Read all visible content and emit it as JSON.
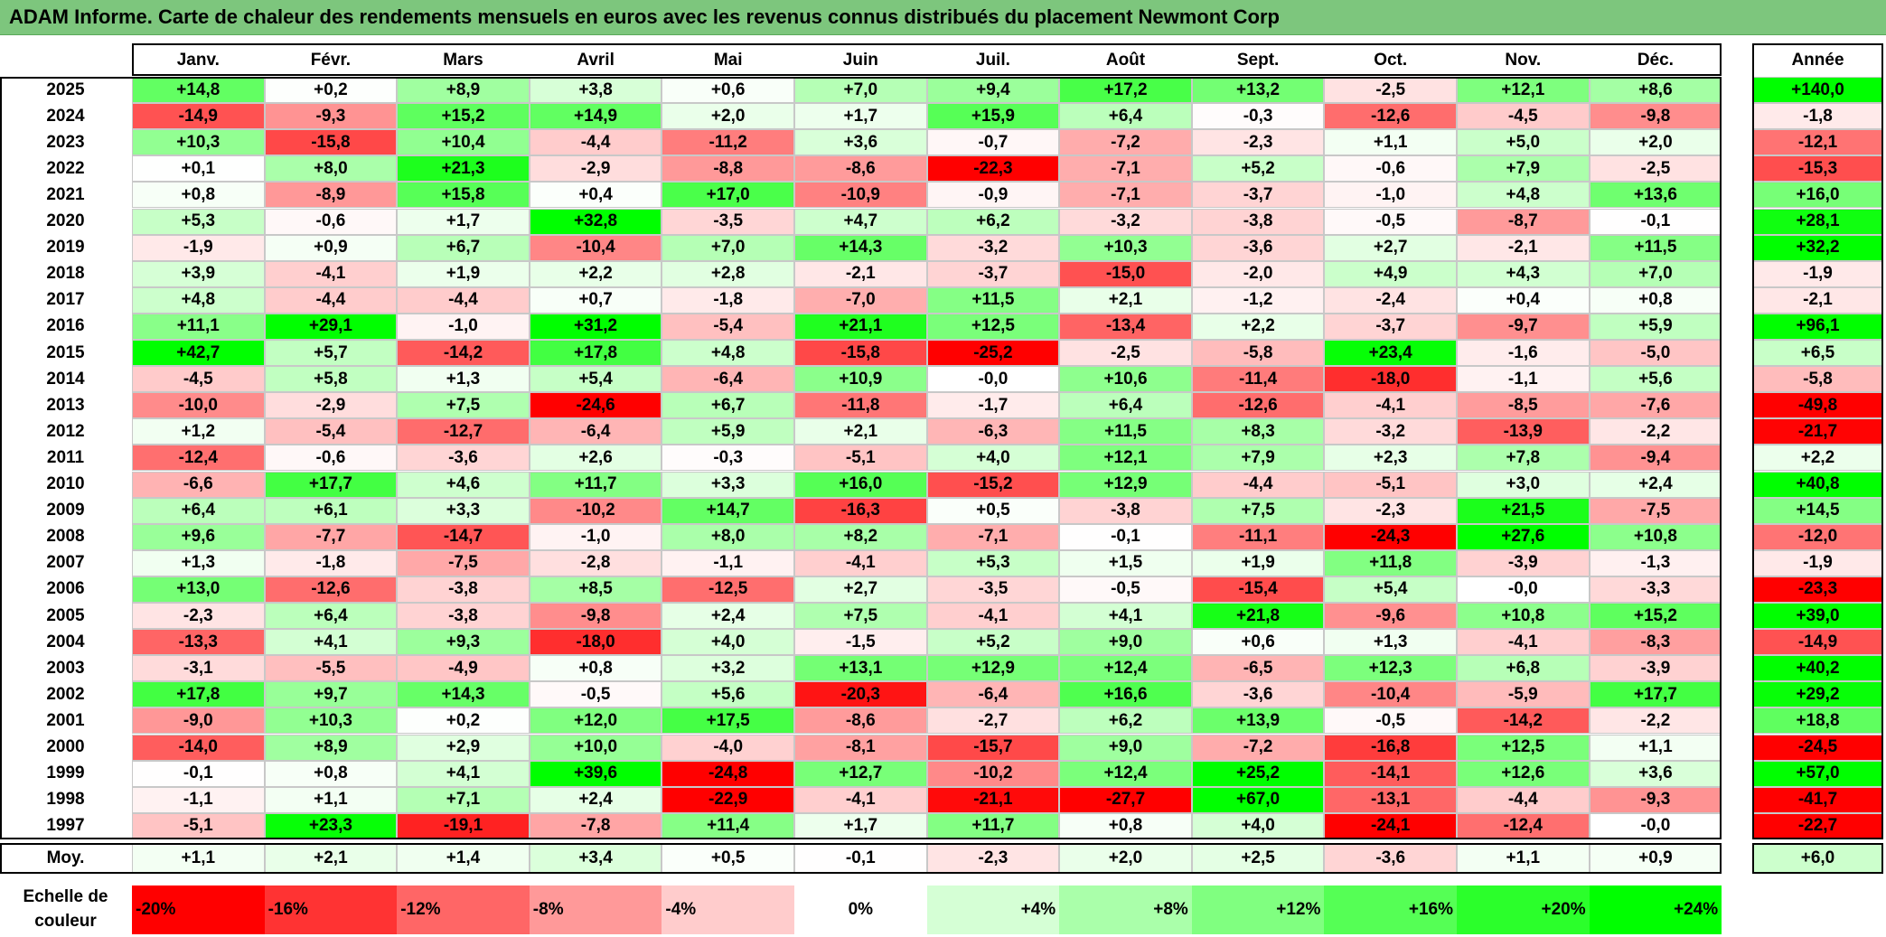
{
  "header": {
    "title": "ADAM Informe. Carte de chaleur des rendements mensuels en euros avec les revenus connus distribués du placement Newmont Corp"
  },
  "chart_data": {
    "type": "heatmap",
    "title": "ADAM Informe. Carte de chaleur des rendements mensuels en euros avec les revenus connus distribués du placement Newmont Corp",
    "columns": [
      "Janv.",
      "Févr.",
      "Mars",
      "Avril",
      "Mai",
      "Juin",
      "Juil.",
      "Août",
      "Sept.",
      "Oct.",
      "Nov.",
      "Déc."
    ],
    "annual_header": "Année",
    "years": [
      "2025",
      "2024",
      "2023",
      "2022",
      "2021",
      "2020",
      "2019",
      "2018",
      "2017",
      "2016",
      "2015",
      "2014",
      "2013",
      "2012",
      "2011",
      "2010",
      "2009",
      "2008",
      "2007",
      "2006",
      "2005",
      "2004",
      "2003",
      "2002",
      "2001",
      "2000",
      "1999",
      "1998",
      "1997"
    ],
    "values": [
      [
        "+14,8",
        "+0,2",
        "+8,9",
        "+3,8",
        "+0,6",
        "+7,0",
        "+9,4",
        "+17,2",
        "+13,2",
        "-2,5",
        "+12,1",
        "+8,6"
      ],
      [
        "-14,9",
        "-9,3",
        "+15,2",
        "+14,9",
        "+2,0",
        "+1,7",
        "+15,9",
        "+6,4",
        "-0,3",
        "-12,6",
        "-4,5",
        "-9,8"
      ],
      [
        "+10,3",
        "-15,8",
        "+10,4",
        "-4,4",
        "-11,2",
        "+3,6",
        "-0,7",
        "-7,2",
        "-2,3",
        "+1,1",
        "+5,0",
        "+2,0"
      ],
      [
        "+0,1",
        "+8,0",
        "+21,3",
        "-2,9",
        "-8,8",
        "-8,6",
        "-22,3",
        "-7,1",
        "+5,2",
        "-0,6",
        "+7,9",
        "-2,5"
      ],
      [
        "+0,8",
        "-8,9",
        "+15,8",
        "+0,4",
        "+17,0",
        "-10,9",
        "-0,9",
        "-7,1",
        "-3,7",
        "-1,0",
        "+4,8",
        "+13,6"
      ],
      [
        "+5,3",
        "-0,6",
        "+1,7",
        "+32,8",
        "-3,5",
        "+4,7",
        "+6,2",
        "-3,2",
        "-3,8",
        "-0,5",
        "-8,7",
        "-0,1"
      ],
      [
        "-1,9",
        "+0,9",
        "+6,7",
        "-10,4",
        "+7,0",
        "+14,3",
        "-3,2",
        "+10,3",
        "-3,6",
        "+2,7",
        "-2,1",
        "+11,5"
      ],
      [
        "+3,9",
        "-4,1",
        "+1,9",
        "+2,2",
        "+2,8",
        "-2,1",
        "-3,7",
        "-15,0",
        "-2,0",
        "+4,9",
        "+4,3",
        "+7,0"
      ],
      [
        "+4,8",
        "-4,4",
        "-4,4",
        "+0,7",
        "-1,8",
        "-7,0",
        "+11,5",
        "+2,1",
        "-1,2",
        "-2,4",
        "+0,4",
        "+0,8"
      ],
      [
        "+11,1",
        "+29,1",
        "-1,0",
        "+31,2",
        "-5,4",
        "+21,1",
        "+12,5",
        "-13,4",
        "+2,2",
        "-3,7",
        "-9,7",
        "+5,9"
      ],
      [
        "+42,7",
        "+5,7",
        "-14,2",
        "+17,8",
        "+4,8",
        "-15,8",
        "-25,2",
        "-2,5",
        "-5,8",
        "+23,4",
        "-1,6",
        "-5,0"
      ],
      [
        "-4,5",
        "+5,8",
        "+1,3",
        "+5,4",
        "-6,4",
        "+10,9",
        "-0,0",
        "+10,6",
        "-11,4",
        "-18,0",
        "-1,1",
        "+5,6"
      ],
      [
        "-10,0",
        "-2,9",
        "+7,5",
        "-24,6",
        "+6,7",
        "-11,8",
        "-1,7",
        "+6,4",
        "-12,6",
        "-4,1",
        "-8,5",
        "-7,6"
      ],
      [
        "+1,2",
        "-5,4",
        "-12,7",
        "-6,4",
        "+5,9",
        "+2,1",
        "-6,3",
        "+11,5",
        "+8,3",
        "-3,2",
        "-13,9",
        "-2,2"
      ],
      [
        "-12,4",
        "-0,6",
        "-3,6",
        "+2,6",
        "-0,3",
        "-5,1",
        "+4,0",
        "+12,1",
        "+7,9",
        "+2,3",
        "+7,8",
        "-9,4"
      ],
      [
        "-6,6",
        "+17,7",
        "+4,6",
        "+11,7",
        "+3,3",
        "+16,0",
        "-15,2",
        "+12,9",
        "-4,4",
        "-5,1",
        "+3,0",
        "+2,4"
      ],
      [
        "+6,4",
        "+6,1",
        "+3,3",
        "-10,2",
        "+14,7",
        "-16,3",
        "+0,5",
        "-3,8",
        "+7,5",
        "-2,3",
        "+21,5",
        "-7,5"
      ],
      [
        "+9,6",
        "-7,7",
        "-14,7",
        "-1,0",
        "+8,0",
        "+8,2",
        "-7,1",
        "-0,1",
        "-11,1",
        "-24,3",
        "+27,6",
        "+10,8"
      ],
      [
        "+1,3",
        "-1,8",
        "-7,5",
        "-2,8",
        "-1,1",
        "-4,1",
        "+5,3",
        "+1,5",
        "+1,9",
        "+11,8",
        "-3,9",
        "-1,3"
      ],
      [
        "+13,0",
        "-12,6",
        "-3,8",
        "+8,5",
        "-12,5",
        "+2,7",
        "-3,5",
        "-0,5",
        "-15,4",
        "+5,4",
        "-0,0",
        "-3,3"
      ],
      [
        "-2,3",
        "+6,4",
        "-3,8",
        "-9,8",
        "+2,4",
        "+7,5",
        "-4,1",
        "+4,1",
        "+21,8",
        "-9,6",
        "+10,8",
        "+15,2"
      ],
      [
        "-13,3",
        "+4,1",
        "+9,3",
        "-18,0",
        "+4,0",
        "-1,5",
        "+5,2",
        "+9,0",
        "+0,6",
        "+1,3",
        "-4,1",
        "-8,3"
      ],
      [
        "-3,1",
        "-5,5",
        "-4,9",
        "+0,8",
        "+3,2",
        "+13,1",
        "+12,9",
        "+12,4",
        "-6,5",
        "+12,3",
        "+6,8",
        "-3,9"
      ],
      [
        "+17,8",
        "+9,7",
        "+14,3",
        "-0,5",
        "+5,6",
        "-20,3",
        "-6,4",
        "+16,6",
        "-3,6",
        "-10,4",
        "-5,9",
        "+17,7"
      ],
      [
        "-9,0",
        "+10,3",
        "+0,2",
        "+12,0",
        "+17,5",
        "-8,6",
        "-2,7",
        "+6,2",
        "+13,9",
        "-0,5",
        "-14,2",
        "-2,2"
      ],
      [
        "-14,0",
        "+8,9",
        "+2,9",
        "+10,0",
        "-4,0",
        "-8,1",
        "-15,7",
        "+9,0",
        "-7,2",
        "-16,8",
        "+12,5",
        "+1,1"
      ],
      [
        "-0,1",
        "+0,8",
        "+4,1",
        "+39,6",
        "-24,8",
        "+12,7",
        "-10,2",
        "+12,4",
        "+25,2",
        "-14,1",
        "+12,6",
        "+3,6"
      ],
      [
        "-1,1",
        "+1,1",
        "+7,1",
        "+2,4",
        "-22,9",
        "-4,1",
        "-21,1",
        "-27,7",
        "+67,0",
        "-13,1",
        "-4,4",
        "-9,3"
      ],
      [
        "-5,1",
        "+23,3",
        "-19,1",
        "-7,8",
        "+11,4",
        "+1,7",
        "+11,7",
        "+0,8",
        "+4,0",
        "-24,1",
        "-12,4",
        "-0,0"
      ]
    ],
    "annual": [
      "+140,0",
      "-1,8",
      "-12,1",
      "-15,3",
      "+16,0",
      "+28,1",
      "+32,2",
      "-1,9",
      "-2,1",
      "+96,1",
      "+6,5",
      "-5,8",
      "-49,8",
      "-21,7",
      "+2,2",
      "+40,8",
      "+14,5",
      "-12,0",
      "-1,9",
      "-23,3",
      "+39,0",
      "-14,9",
      "+40,2",
      "+29,2",
      "+18,8",
      "-24,5",
      "+57,0",
      "-41,7",
      "-22,7"
    ],
    "average_label": "Moy.",
    "averages": [
      "+1,1",
      "+2,1",
      "+1,4",
      "+3,4",
      "+0,5",
      "-0,1",
      "-2,3",
      "+2,0",
      "+2,5",
      "-3,6",
      "+1,1",
      "+0,9"
    ],
    "average_annual": "+6,0",
    "scale": {
      "label": "Echelle de couleur",
      "stops": [
        "-20%",
        "-16%",
        "-12%",
        "-8%",
        "-4%",
        "0%",
        "+4%",
        "+8%",
        "+12%",
        "+16%",
        "+20%",
        "+24%"
      ]
    },
    "colors": {
      "negative": "#ff0000",
      "neutral": "#ffffff",
      "positive": "#00ff00"
    }
  }
}
